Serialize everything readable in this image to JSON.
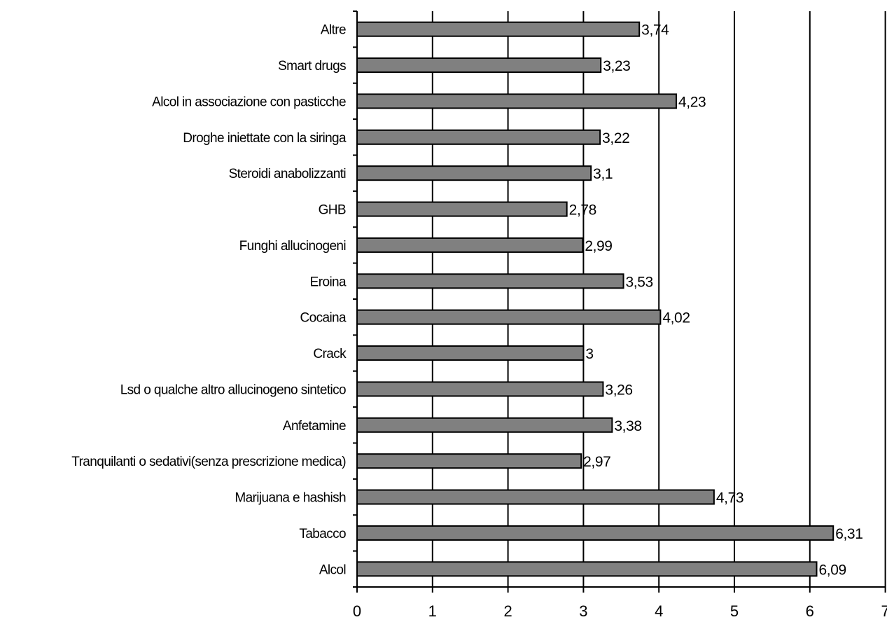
{
  "chart_data": {
    "type": "bar",
    "orientation": "horizontal",
    "categories": [
      "Altre",
      "Smart drugs",
      "Alcol in associazione con pasticche",
      "Droghe iniettate con la siringa",
      "Steroidi anabolizzanti",
      "GHB",
      "Funghi allucinogeni",
      "Eroina",
      "Cocaina",
      "Crack",
      "Lsd o qualche altro allucinogeno sintetico",
      "Anfetamine",
      "Tranquilanti o sedativi(senza prescrizione medica)",
      "Marijuana e hashish",
      "Tabacco",
      "Alcol"
    ],
    "values": [
      3.74,
      3.23,
      4.23,
      3.22,
      3.1,
      2.78,
      2.99,
      3.53,
      4.02,
      3,
      3.26,
      3.38,
      2.97,
      4.73,
      6.31,
      6.09
    ],
    "data_labels": [
      "3,74",
      "3,23",
      "4,23",
      "3,22",
      "3,1",
      "2,78",
      "2,99",
      "3,53",
      "4,02",
      "3",
      "3,26",
      "3,38",
      "2,97",
      "4,73",
      "6,31",
      "6,09"
    ],
    "x_ticks": [
      "0",
      "1",
      "2",
      "3",
      "4",
      "5",
      "6",
      "7"
    ],
    "xlim": [
      0,
      7
    ],
    "title": "",
    "xlabel": "",
    "ylabel": "",
    "grid": "vertical",
    "legend": "none",
    "bar_color": "#808080",
    "bar_stroke": "#000000",
    "grid_color": "#000000"
  }
}
